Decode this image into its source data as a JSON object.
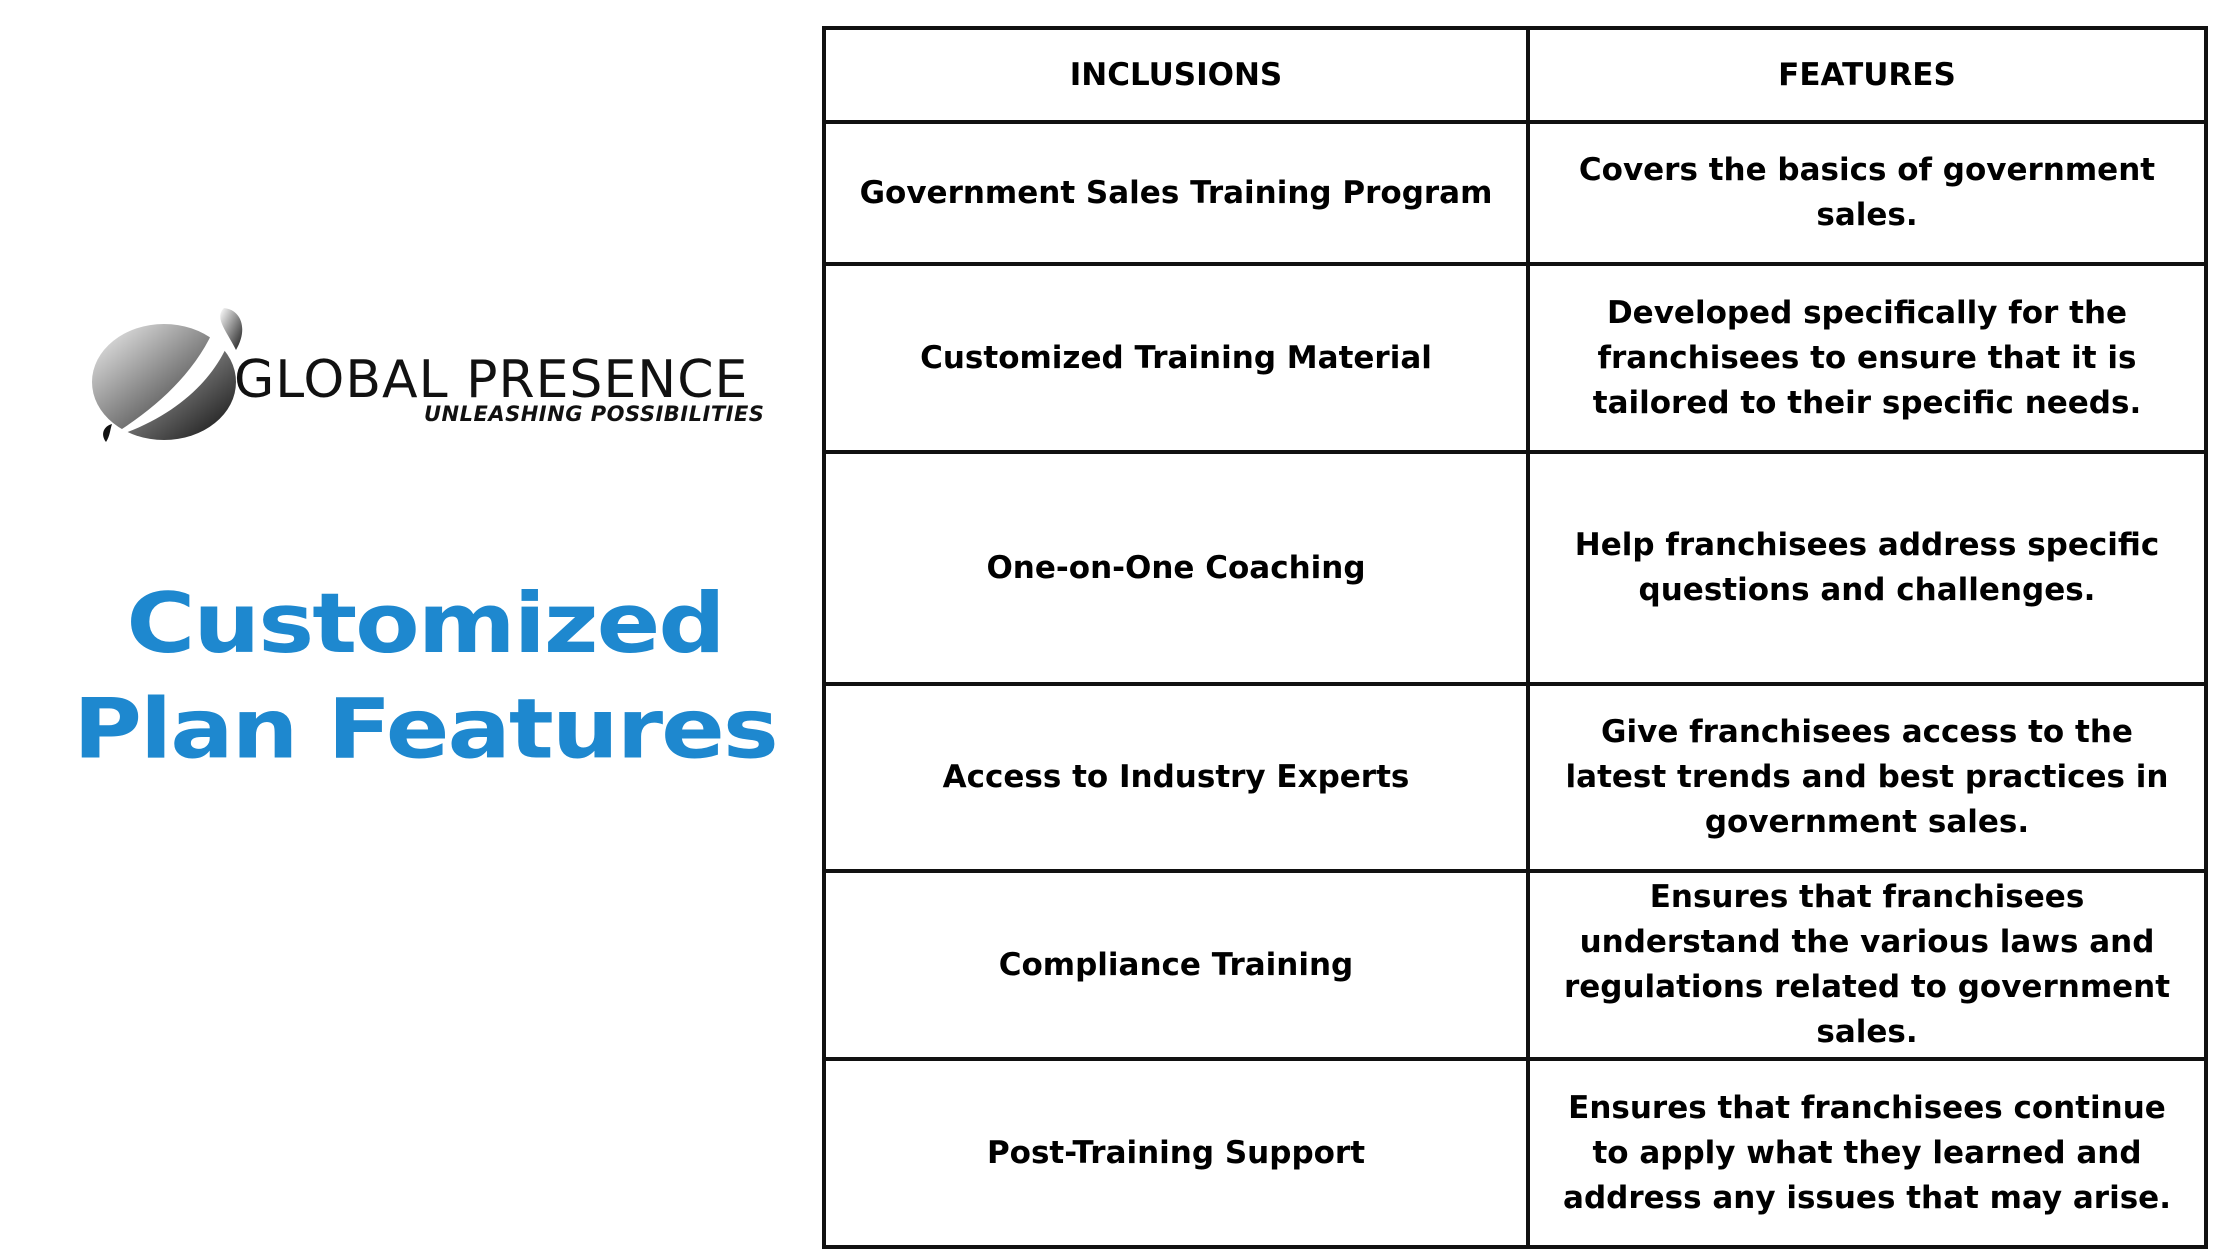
{
  "brand": {
    "name": "GLOBAL PRESENCE",
    "tagline": "UNLEASHING POSSIBILITIES",
    "logo_icon": "globe-swoosh-icon",
    "colors": {
      "accent": "#1e88cf",
      "text": "#000000",
      "logo_dark": "#111111"
    }
  },
  "headline": {
    "line1": "Customized",
    "line2": "Plan Features"
  },
  "table": {
    "headers": {
      "inclusions": "INCLUSIONS",
      "features": "FEATURES"
    },
    "rows": [
      {
        "inclusion": "Government Sales Training Program",
        "feature": "Covers the basics of government sales."
      },
      {
        "inclusion": "Customized Training Material",
        "feature": "Developed specifically for the franchisees to ensure that it is tailored to their specific needs."
      },
      {
        "inclusion": "One-on-One Coaching",
        "feature": "Help franchisees address specific questions and challenges."
      },
      {
        "inclusion": "Access to Industry Experts",
        "feature": "Give franchisees access to the latest trends and best practices in government sales."
      },
      {
        "inclusion": "Compliance Training",
        "feature": "Ensures that franchisees understand the various laws and regulations related to government sales."
      },
      {
        "inclusion": "Post-Training Support",
        "feature": "Ensures that franchisees continue to apply what they learned and address any issues that may arise."
      }
    ]
  }
}
